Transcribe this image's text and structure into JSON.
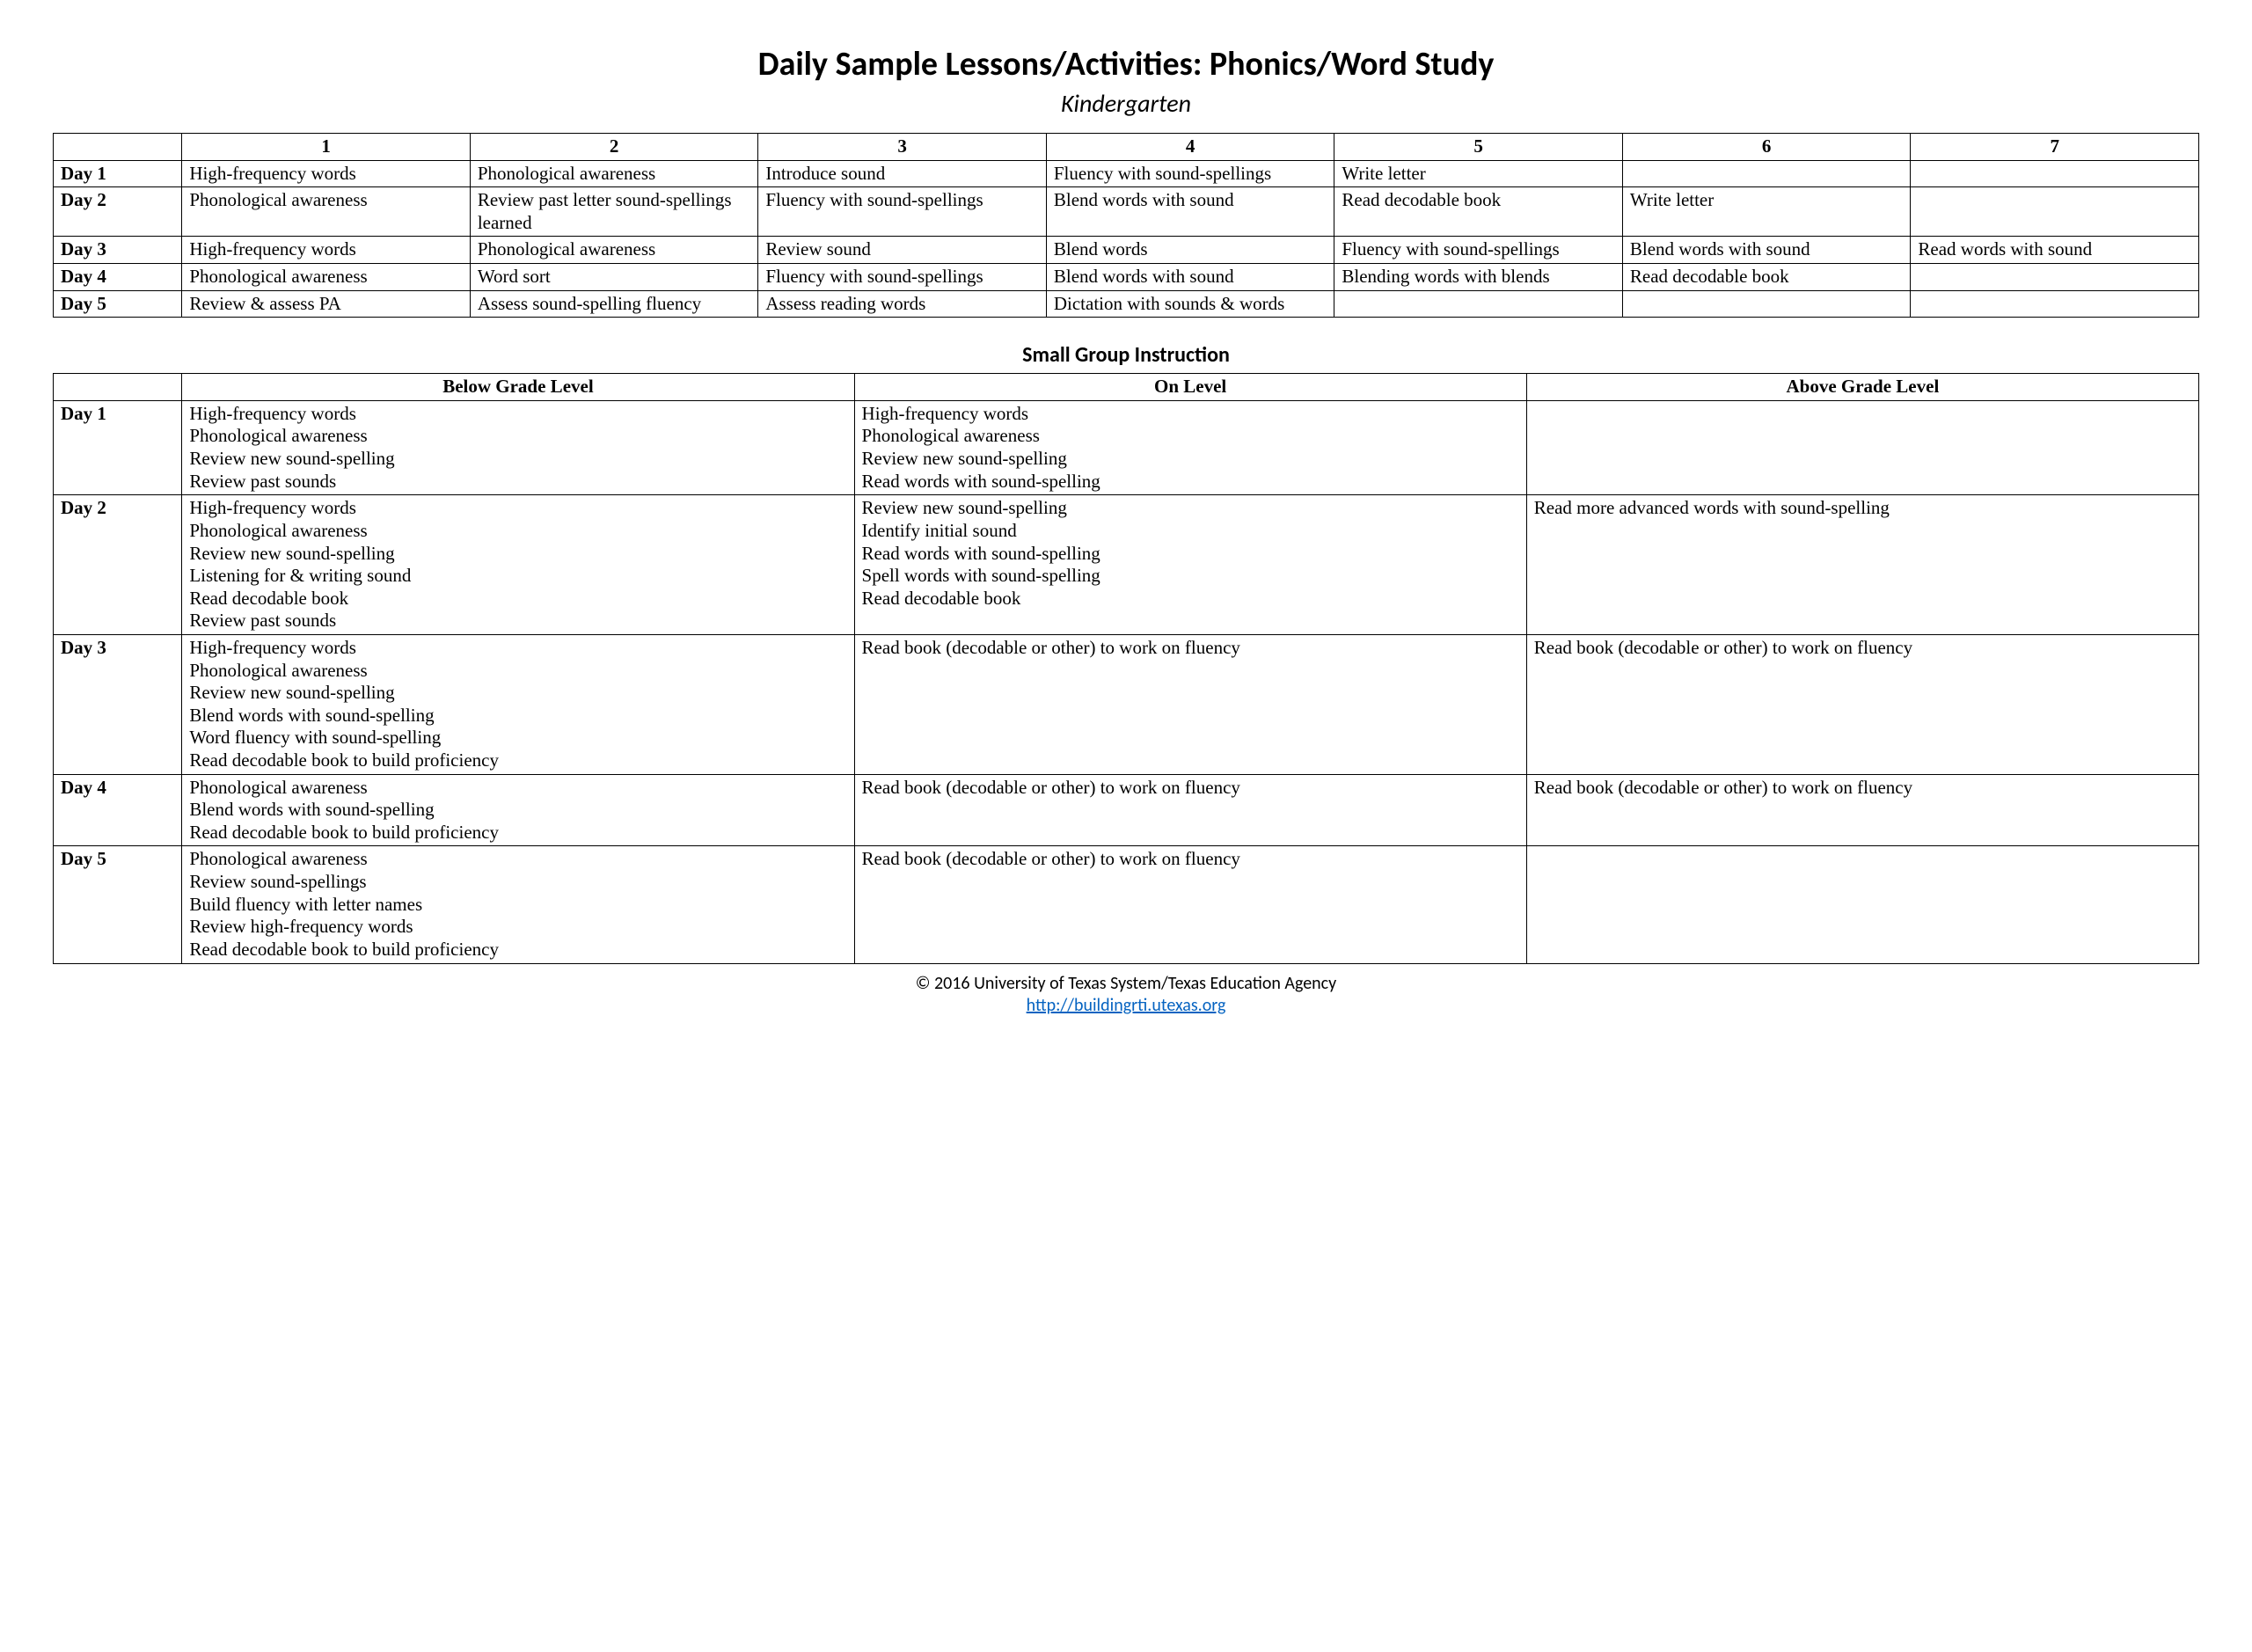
{
  "title": "Daily Sample Lessons/Activities: Phonics/Word Study",
  "subtitle": "Kindergarten",
  "wholeGroup": {
    "columnHeaders": [
      "",
      "1",
      "2",
      "3",
      "4",
      "5",
      "6",
      "7"
    ],
    "rows": [
      {
        "day": "Day 1",
        "cells": [
          "High-frequency words",
          "Phonological awareness",
          "Introduce sound",
          "Fluency with sound-spellings",
          "Write letter",
          "",
          ""
        ]
      },
      {
        "day": "Day 2",
        "cells": [
          "Phonological awareness",
          "Review past letter sound-spellings learned",
          "Fluency with sound-spellings",
          "Blend words with sound",
          "Read decodable book",
          "Write letter",
          ""
        ]
      },
      {
        "day": "Day 3",
        "cells": [
          "High-frequency words",
          "Phonological awareness",
          "Review sound",
          "Blend words",
          "Fluency with sound-spellings",
          "Blend words with sound",
          "Read words with sound"
        ]
      },
      {
        "day": "Day 4",
        "cells": [
          "Phonological awareness",
          "Word sort",
          "Fluency with sound-spellings",
          "Blend words with sound",
          "Blending words with blends",
          "Read decodable book",
          ""
        ]
      },
      {
        "day": "Day 5",
        "cells": [
          "Review & assess PA",
          "Assess sound-spelling fluency",
          "Assess reading words",
          "Dictation with sounds & words",
          "",
          "",
          ""
        ]
      }
    ]
  },
  "smallGroup": {
    "title": "Small Group Instruction",
    "columnHeaders": [
      "",
      "Below Grade Level",
      "On Level",
      "Above Grade Level"
    ],
    "rows": [
      {
        "day": "Day 1",
        "below": [
          "High-frequency words",
          "Phonological awareness",
          "Review new sound-spelling",
          "Review past sounds"
        ],
        "on": [
          "High-frequency words",
          "Phonological awareness",
          "Review new sound-spelling",
          "Read words with sound-spelling"
        ],
        "above": []
      },
      {
        "day": "Day 2",
        "below": [
          "High-frequency words",
          "Phonological awareness",
          "Review new sound-spelling",
          "Listening for & writing sound",
          "Read decodable book",
          "Review past sounds"
        ],
        "on": [
          "Review new sound-spelling",
          "Identify initial sound",
          "Read words with sound-spelling",
          "Spell words with sound-spelling",
          "Read decodable book"
        ],
        "above": [
          "Read more advanced words with sound-spelling"
        ]
      },
      {
        "day": "Day 3",
        "below": [
          "High-frequency words",
          "Phonological awareness",
          "Review new sound-spelling",
          "Blend words with sound-spelling",
          "Word fluency with sound-spelling",
          "Read decodable book to build proficiency"
        ],
        "on": [
          "Read book (decodable or other) to work on fluency"
        ],
        "above": [
          "Read book (decodable or other) to work on fluency"
        ]
      },
      {
        "day": "Day 4",
        "below": [
          "Phonological awareness",
          "Blend words with sound-spelling",
          "Read decodable book to build proficiency"
        ],
        "on": [
          "Read book (decodable or other) to work on fluency"
        ],
        "above": [
          "Read book (decodable or other) to work on fluency"
        ]
      },
      {
        "day": "Day 5",
        "below": [
          "Phonological awareness",
          "Review sound-spellings",
          "Build fluency with letter names",
          "Review high-frequency words",
          "Read decodable book to build proficiency"
        ],
        "on": [
          "Read book (decodable or other) to work on fluency"
        ],
        "above": []
      }
    ]
  },
  "footer": {
    "copyright": "© 2016 University of Texas System/Texas Education Agency",
    "linkText": "http://buildingrti.utexas.org",
    "linkHref": "http://buildingrti.utexas.org"
  }
}
